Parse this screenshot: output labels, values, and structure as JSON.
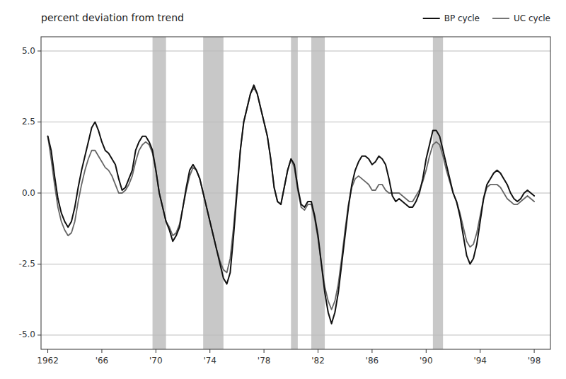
{
  "chart_data": {
    "type": "line",
    "title": "percent deviation from trend",
    "x": [
      1962.0,
      1962.25,
      1962.5,
      1962.75,
      1963.0,
      1963.25,
      1963.5,
      1963.75,
      1964.0,
      1964.25,
      1964.5,
      1964.75,
      1965.0,
      1965.25,
      1965.5,
      1965.75,
      1966.0,
      1966.25,
      1966.5,
      1966.75,
      1967.0,
      1967.25,
      1967.5,
      1967.75,
      1968.0,
      1968.25,
      1968.5,
      1968.75,
      1969.0,
      1969.25,
      1969.5,
      1969.75,
      1970.0,
      1970.25,
      1970.5,
      1970.75,
      1971.0,
      1971.25,
      1971.5,
      1971.75,
      1972.0,
      1972.25,
      1972.5,
      1972.75,
      1973.0,
      1973.25,
      1973.5,
      1973.75,
      1974.0,
      1974.25,
      1974.5,
      1974.75,
      1975.0,
      1975.25,
      1975.5,
      1975.75,
      1976.0,
      1976.25,
      1976.5,
      1976.75,
      1977.0,
      1977.25,
      1977.5,
      1977.75,
      1978.0,
      1978.25,
      1978.5,
      1978.75,
      1979.0,
      1979.25,
      1979.5,
      1979.75,
      1980.0,
      1980.25,
      1980.5,
      1980.75,
      1981.0,
      1981.25,
      1981.5,
      1981.75,
      1982.0,
      1982.25,
      1982.5,
      1982.75,
      1983.0,
      1983.25,
      1983.5,
      1983.75,
      1984.0,
      1984.25,
      1984.5,
      1984.75,
      1985.0,
      1985.25,
      1985.5,
      1985.75,
      1986.0,
      1986.25,
      1986.5,
      1986.75,
      1987.0,
      1987.25,
      1987.5,
      1987.75,
      1988.0,
      1988.25,
      1988.5,
      1988.75,
      1989.0,
      1989.25,
      1989.5,
      1989.75,
      1990.0,
      1990.25,
      1990.5,
      1990.75,
      1991.0,
      1991.25,
      1991.5,
      1991.75,
      1992.0,
      1992.25,
      1992.5,
      1992.75,
      1993.0,
      1993.25,
      1993.5,
      1993.75,
      1994.0,
      1994.25,
      1994.5,
      1994.75,
      1995.0,
      1995.25,
      1995.5,
      1995.75,
      1996.0,
      1996.25,
      1996.5,
      1996.75,
      1997.0,
      1997.25,
      1997.5,
      1997.75,
      1998.0
    ],
    "series": [
      {
        "name": "BP cycle",
        "color": "#111111",
        "values": [
          2.0,
          1.5,
          0.6,
          -0.2,
          -0.7,
          -1.0,
          -1.2,
          -1.0,
          -0.5,
          0.2,
          0.8,
          1.3,
          1.8,
          2.3,
          2.5,
          2.2,
          1.8,
          1.5,
          1.4,
          1.2,
          1.0,
          0.5,
          0.1,
          0.2,
          0.5,
          0.8,
          1.5,
          1.8,
          2.0,
          2.0,
          1.8,
          1.5,
          0.8,
          0.0,
          -0.5,
          -1.0,
          -1.3,
          -1.7,
          -1.5,
          -1.2,
          -0.5,
          0.2,
          0.8,
          1.0,
          0.8,
          0.5,
          0.0,
          -0.5,
          -1.0,
          -1.5,
          -2.0,
          -2.5,
          -3.0,
          -3.2,
          -2.8,
          -1.5,
          0.0,
          1.5,
          2.5,
          3.0,
          3.5,
          3.8,
          3.5,
          3.0,
          2.5,
          2.0,
          1.2,
          0.2,
          -0.3,
          -0.4,
          0.2,
          0.8,
          1.2,
          1.0,
          0.2,
          -0.4,
          -0.5,
          -0.3,
          -0.3,
          -0.8,
          -1.5,
          -2.5,
          -3.5,
          -4.2,
          -4.6,
          -4.2,
          -3.5,
          -2.5,
          -1.5,
          -0.5,
          0.3,
          0.8,
          1.1,
          1.3,
          1.3,
          1.2,
          1.0,
          1.1,
          1.3,
          1.2,
          1.0,
          0.5,
          -0.1,
          -0.3,
          -0.2,
          -0.3,
          -0.4,
          -0.5,
          -0.5,
          -0.3,
          0.0,
          0.5,
          1.2,
          1.7,
          2.2,
          2.2,
          2.0,
          1.5,
          1.0,
          0.5,
          0.0,
          -0.3,
          -0.8,
          -1.5,
          -2.2,
          -2.5,
          -2.3,
          -1.8,
          -1.0,
          -0.2,
          0.3,
          0.5,
          0.7,
          0.8,
          0.7,
          0.5,
          0.3,
          0.0,
          -0.2,
          -0.3,
          -0.2,
          0.0,
          0.1,
          0.0,
          -0.1
        ]
      },
      {
        "name": "UC cycle",
        "color": "#666666",
        "values": [
          2.0,
          1.2,
          0.3,
          -0.5,
          -1.0,
          -1.3,
          -1.5,
          -1.4,
          -1.0,
          -0.3,
          0.3,
          0.8,
          1.2,
          1.5,
          1.5,
          1.3,
          1.1,
          0.9,
          0.8,
          0.6,
          0.3,
          0.0,
          0.0,
          0.1,
          0.3,
          0.6,
          1.1,
          1.5,
          1.7,
          1.8,
          1.7,
          1.4,
          0.8,
          0.0,
          -0.5,
          -1.0,
          -1.2,
          -1.5,
          -1.4,
          -1.1,
          -0.5,
          0.1,
          0.6,
          0.9,
          0.8,
          0.5,
          0.0,
          -0.5,
          -1.0,
          -1.5,
          -2.0,
          -2.4,
          -2.7,
          -2.8,
          -2.3,
          -1.2,
          0.2,
          1.5,
          2.5,
          3.0,
          3.5,
          3.7,
          3.5,
          3.0,
          2.5,
          2.0,
          1.2,
          0.2,
          -0.3,
          -0.4,
          0.2,
          0.8,
          1.2,
          0.9,
          0.1,
          -0.5,
          -0.6,
          -0.4,
          -0.4,
          -0.9,
          -1.6,
          -2.5,
          -3.3,
          -3.8,
          -4.1,
          -3.8,
          -3.2,
          -2.3,
          -1.3,
          -0.4,
          0.2,
          0.5,
          0.6,
          0.5,
          0.4,
          0.3,
          0.1,
          0.1,
          0.3,
          0.3,
          0.1,
          0.0,
          0.0,
          0.0,
          0.0,
          -0.1,
          -0.2,
          -0.3,
          -0.3,
          -0.1,
          0.1,
          0.4,
          0.8,
          1.3,
          1.7,
          1.8,
          1.7,
          1.3,
          0.8,
          0.4,
          0.0,
          -0.3,
          -0.7,
          -1.2,
          -1.7,
          -1.9,
          -1.8,
          -1.4,
          -0.8,
          -0.2,
          0.2,
          0.3,
          0.3,
          0.3,
          0.2,
          0.0,
          -0.2,
          -0.3,
          -0.4,
          -0.4,
          -0.3,
          -0.2,
          -0.1,
          -0.2,
          -0.3
        ]
      }
    ],
    "shaded_bands": {
      "color": "#c8c8c8",
      "ranges": [
        [
          1969.75,
          1970.75
        ],
        [
          1973.5,
          1975.0
        ],
        [
          1980.0,
          1980.5
        ],
        [
          1981.5,
          1982.5
        ],
        [
          1990.5,
          1991.25
        ]
      ]
    },
    "xlim": [
      1961.5,
      1999.2
    ],
    "xticks": [
      1962,
      {
        "value": 1966,
        "label": "'66"
      },
      {
        "value": 1970,
        "label": "'70"
      },
      {
        "value": 1974,
        "label": "'74"
      },
      {
        "value": 1978,
        "label": "'78"
      },
      {
        "value": 1982,
        "label": "'82"
      },
      {
        "value": 1986,
        "label": "'86"
      },
      {
        "value": 1990,
        "label": "'90"
      },
      {
        "value": 1994,
        "label": "'94"
      },
      {
        "value": 1998,
        "label": "'98"
      }
    ],
    "ylim": [
      -5.5,
      5.5
    ],
    "yticks": [
      {
        "value": -5.0,
        "label": "-5.0"
      },
      -2.5,
      {
        "value": 0.0,
        "label": "0.0"
      },
      2.5,
      {
        "value": 5.0,
        "label": "5.0"
      }
    ],
    "grid": true,
    "legend": "upper right"
  }
}
